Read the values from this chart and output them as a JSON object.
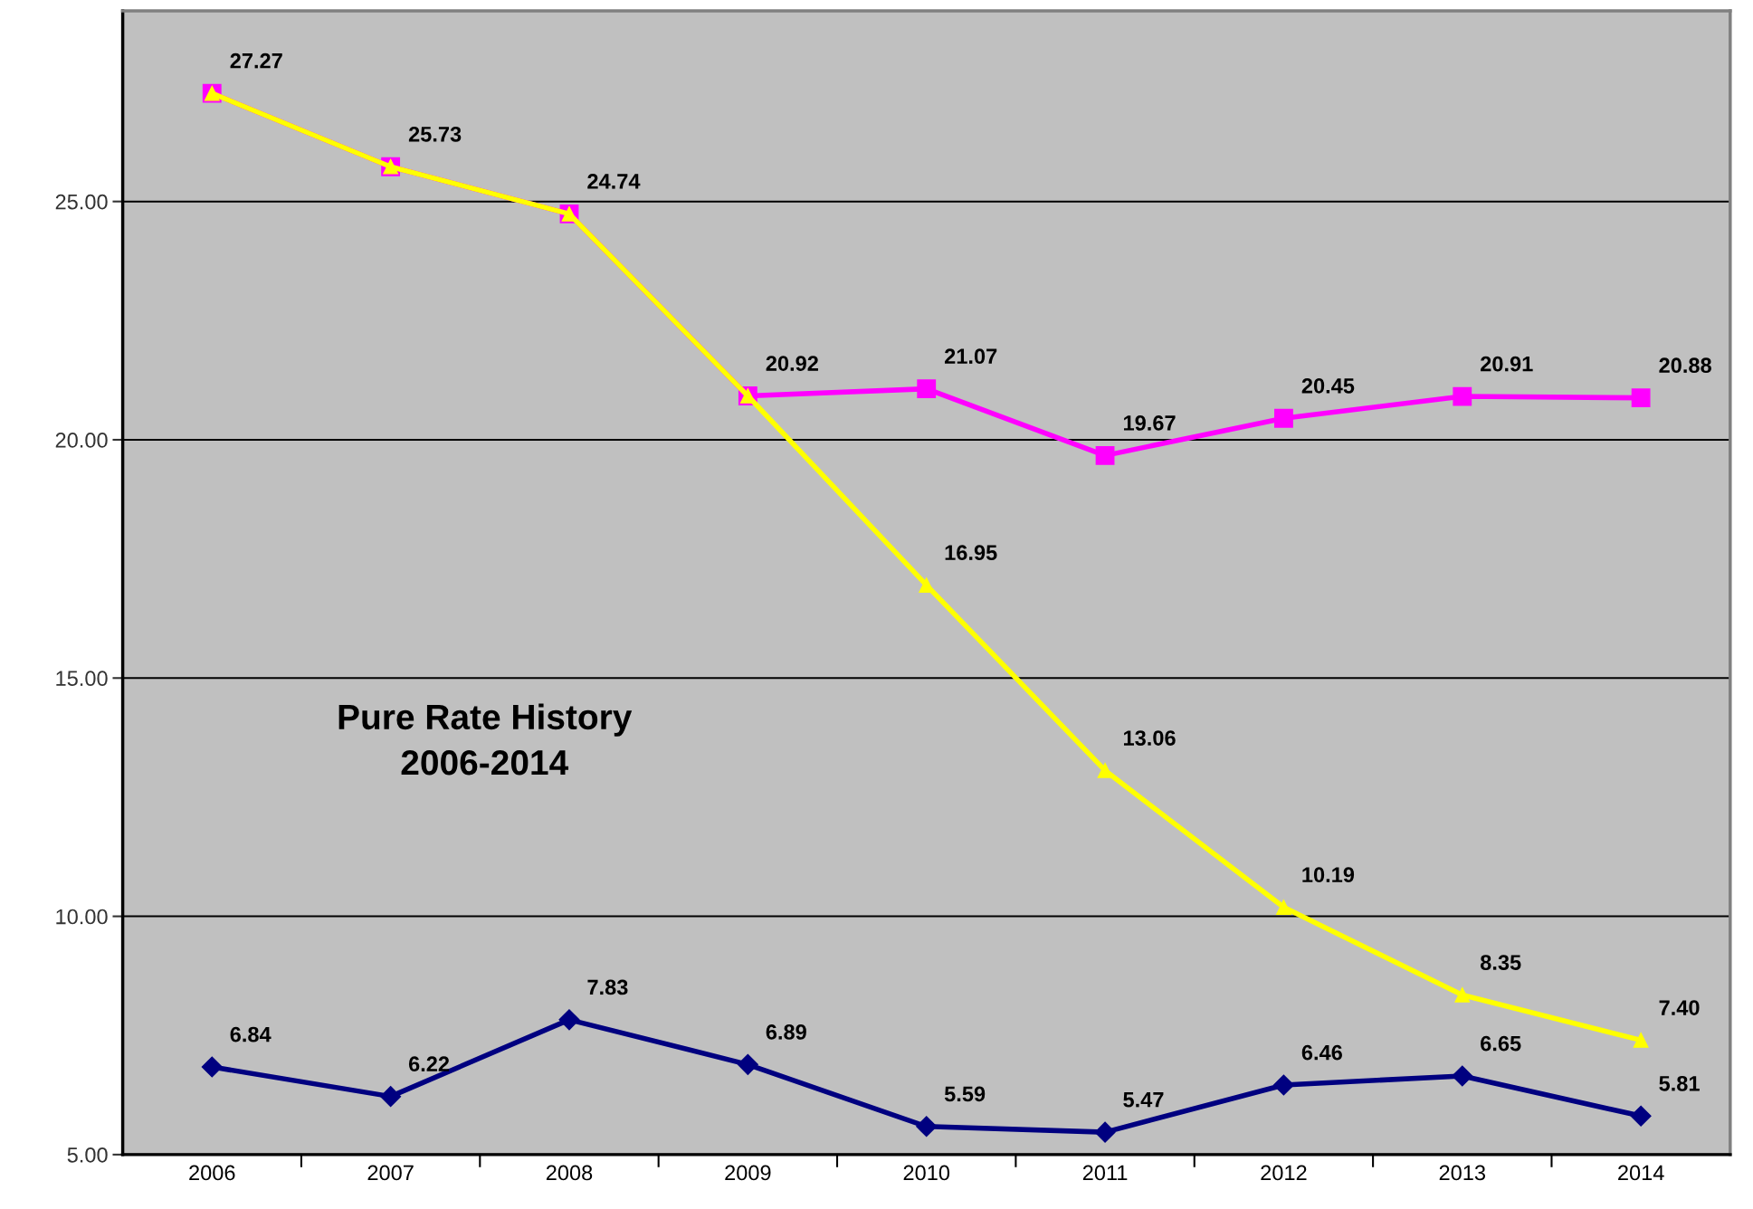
{
  "chart_data": {
    "type": "line",
    "title": "Pure Rate History\n2006-2014",
    "categories": [
      "2006",
      "2007",
      "2008",
      "2009",
      "2010",
      "2011",
      "2012",
      "2013",
      "2014"
    ],
    "series": [
      {
        "color": "#ff00ff",
        "marker": "square",
        "values": [
          27.27,
          25.73,
          24.74,
          20.92,
          21.07,
          19.67,
          20.45,
          20.91,
          20.88
        ],
        "value_labels": [
          "27.27",
          "25.73",
          "24.74",
          "20.92",
          "21.07",
          "19.67",
          "20.45",
          "20.91",
          "20.88"
        ]
      },
      {
        "color": "#ffff00",
        "marker": "triangle",
        "values": [
          27.27,
          25.73,
          24.74,
          20.92,
          16.95,
          13.06,
          10.19,
          8.35,
          7.4
        ],
        "value_labels": [
          null,
          null,
          null,
          null,
          "16.95",
          "13.06",
          "10.19",
          "8.35",
          "7.40"
        ]
      },
      {
        "color": "#000080",
        "marker": "diamond",
        "values": [
          6.84,
          6.22,
          7.83,
          6.89,
          5.59,
          5.47,
          6.46,
          6.65,
          5.81
        ],
        "value_labels": [
          "6.84",
          "6.22",
          "7.83",
          "6.89",
          "5.59",
          "5.47",
          "6.46",
          "6.65",
          "5.81"
        ]
      }
    ],
    "ylim": [
      5,
      29
    ],
    "yticks": [
      {
        "value": 5,
        "label": "5.00"
      },
      {
        "value": 10,
        "label": "10.00"
      },
      {
        "value": 15,
        "label": "15.00"
      },
      {
        "value": 20,
        "label": "20.00"
      },
      {
        "value": 25,
        "label": "25.00"
      }
    ],
    "grid": "y",
    "legend": false,
    "line_style": "solid"
  }
}
